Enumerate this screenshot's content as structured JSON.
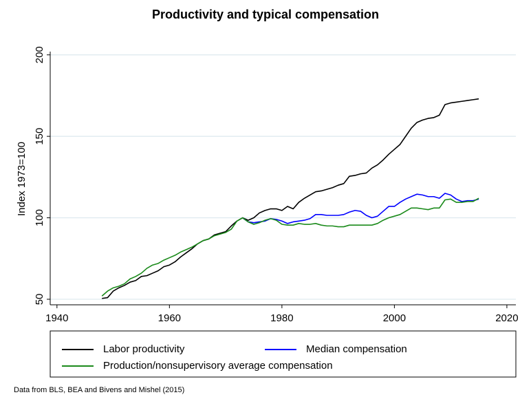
{
  "chart_data": {
    "type": "line",
    "title": "Productivity and typical compensation",
    "y_label": "Index 1973=100",
    "note": "Data from BLS, BEA and Bivens and Mishel (2015)",
    "x": [
      1948,
      1949,
      1950,
      1951,
      1952,
      1953,
      1954,
      1955,
      1956,
      1957,
      1958,
      1959,
      1960,
      1961,
      1962,
      1963,
      1964,
      1965,
      1966,
      1967,
      1968,
      1969,
      1970,
      1971,
      1972,
      1973,
      1974,
      1975,
      1976,
      1977,
      1978,
      1979,
      1980,
      1981,
      1982,
      1983,
      1984,
      1985,
      1986,
      1987,
      1988,
      1989,
      1990,
      1991,
      1992,
      1993,
      1994,
      1995,
      1996,
      1997,
      1998,
      1999,
      2000,
      2001,
      2002,
      2003,
      2004,
      2005,
      2006,
      2007,
      2008,
      2009,
      2010,
      2011,
      2012,
      2013,
      2014,
      2015
    ],
    "series": [
      {
        "name": "Labor productivity",
        "color": "#000000",
        "values": [
          50.5,
          51,
          55,
          57,
          58.5,
          60.5,
          61.5,
          64,
          64.5,
          66,
          67.5,
          70,
          71,
          73,
          76,
          78.5,
          81,
          84,
          86,
          87,
          89.5,
          90.5,
          91.5,
          95,
          98,
          100,
          98.5,
          100,
          103,
          104.5,
          105.5,
          105.5,
          104.5,
          107,
          105.5,
          109.5,
          112,
          114,
          116,
          116.5,
          117.5,
          118.5,
          120,
          121,
          125.5,
          126,
          127,
          127.5,
          130.5,
          132.5,
          135.5,
          139,
          142,
          145,
          150,
          155,
          158.5,
          160,
          161,
          161.5,
          163,
          169.5,
          170.5,
          171,
          171.5,
          172,
          172.5,
          173
        ]
      },
      {
        "name": "Median compensation",
        "color": "#0000ff",
        "values": [
          null,
          null,
          null,
          null,
          null,
          null,
          null,
          null,
          null,
          null,
          null,
          null,
          null,
          null,
          null,
          null,
          null,
          null,
          null,
          null,
          null,
          null,
          null,
          null,
          null,
          100,
          97.5,
          97,
          97.5,
          98,
          99.5,
          99,
          98,
          96.5,
          97.5,
          98,
          98.5,
          99.5,
          102,
          102,
          101.5,
          101.5,
          101.5,
          102,
          103.5,
          104.5,
          104,
          101.5,
          100,
          101,
          104,
          107,
          107,
          109.5,
          111.5,
          113,
          114.5,
          114,
          113,
          113,
          112,
          115,
          114,
          111.5,
          110,
          110.5,
          110.5,
          111.5
        ]
      },
      {
        "name": "Production/nonsupervisory average compensation",
        "color": "#1a8a1a",
        "values": [
          52,
          55,
          57,
          58,
          59.5,
          62.5,
          64,
          66,
          69,
          71,
          72,
          74,
          75.5,
          77,
          79,
          80.5,
          82,
          84,
          86,
          87,
          89,
          90,
          91,
          93,
          98,
          100,
          97.5,
          96,
          97,
          98.5,
          99.5,
          98.5,
          96,
          95.5,
          95.5,
          96.5,
          96,
          96,
          96.5,
          95.5,
          95,
          95,
          94.5,
          94.5,
          95.5,
          95.5,
          95.5,
          95.5,
          95.5,
          96.5,
          98.5,
          100,
          101,
          102,
          104,
          106,
          106,
          105.5,
          105,
          106,
          106,
          111,
          111.5,
          109.5,
          109.5,
          110,
          110,
          112
        ]
      }
    ],
    "xlim": [
      1938.8,
      2021.6
    ],
    "xticks": [
      1940,
      1960,
      1980,
      2000,
      2020
    ],
    "ylim": [
      46.6,
      202
    ],
    "yticks": [
      50,
      100,
      150,
      200
    ],
    "grid": true,
    "legend_position": "bottom"
  }
}
